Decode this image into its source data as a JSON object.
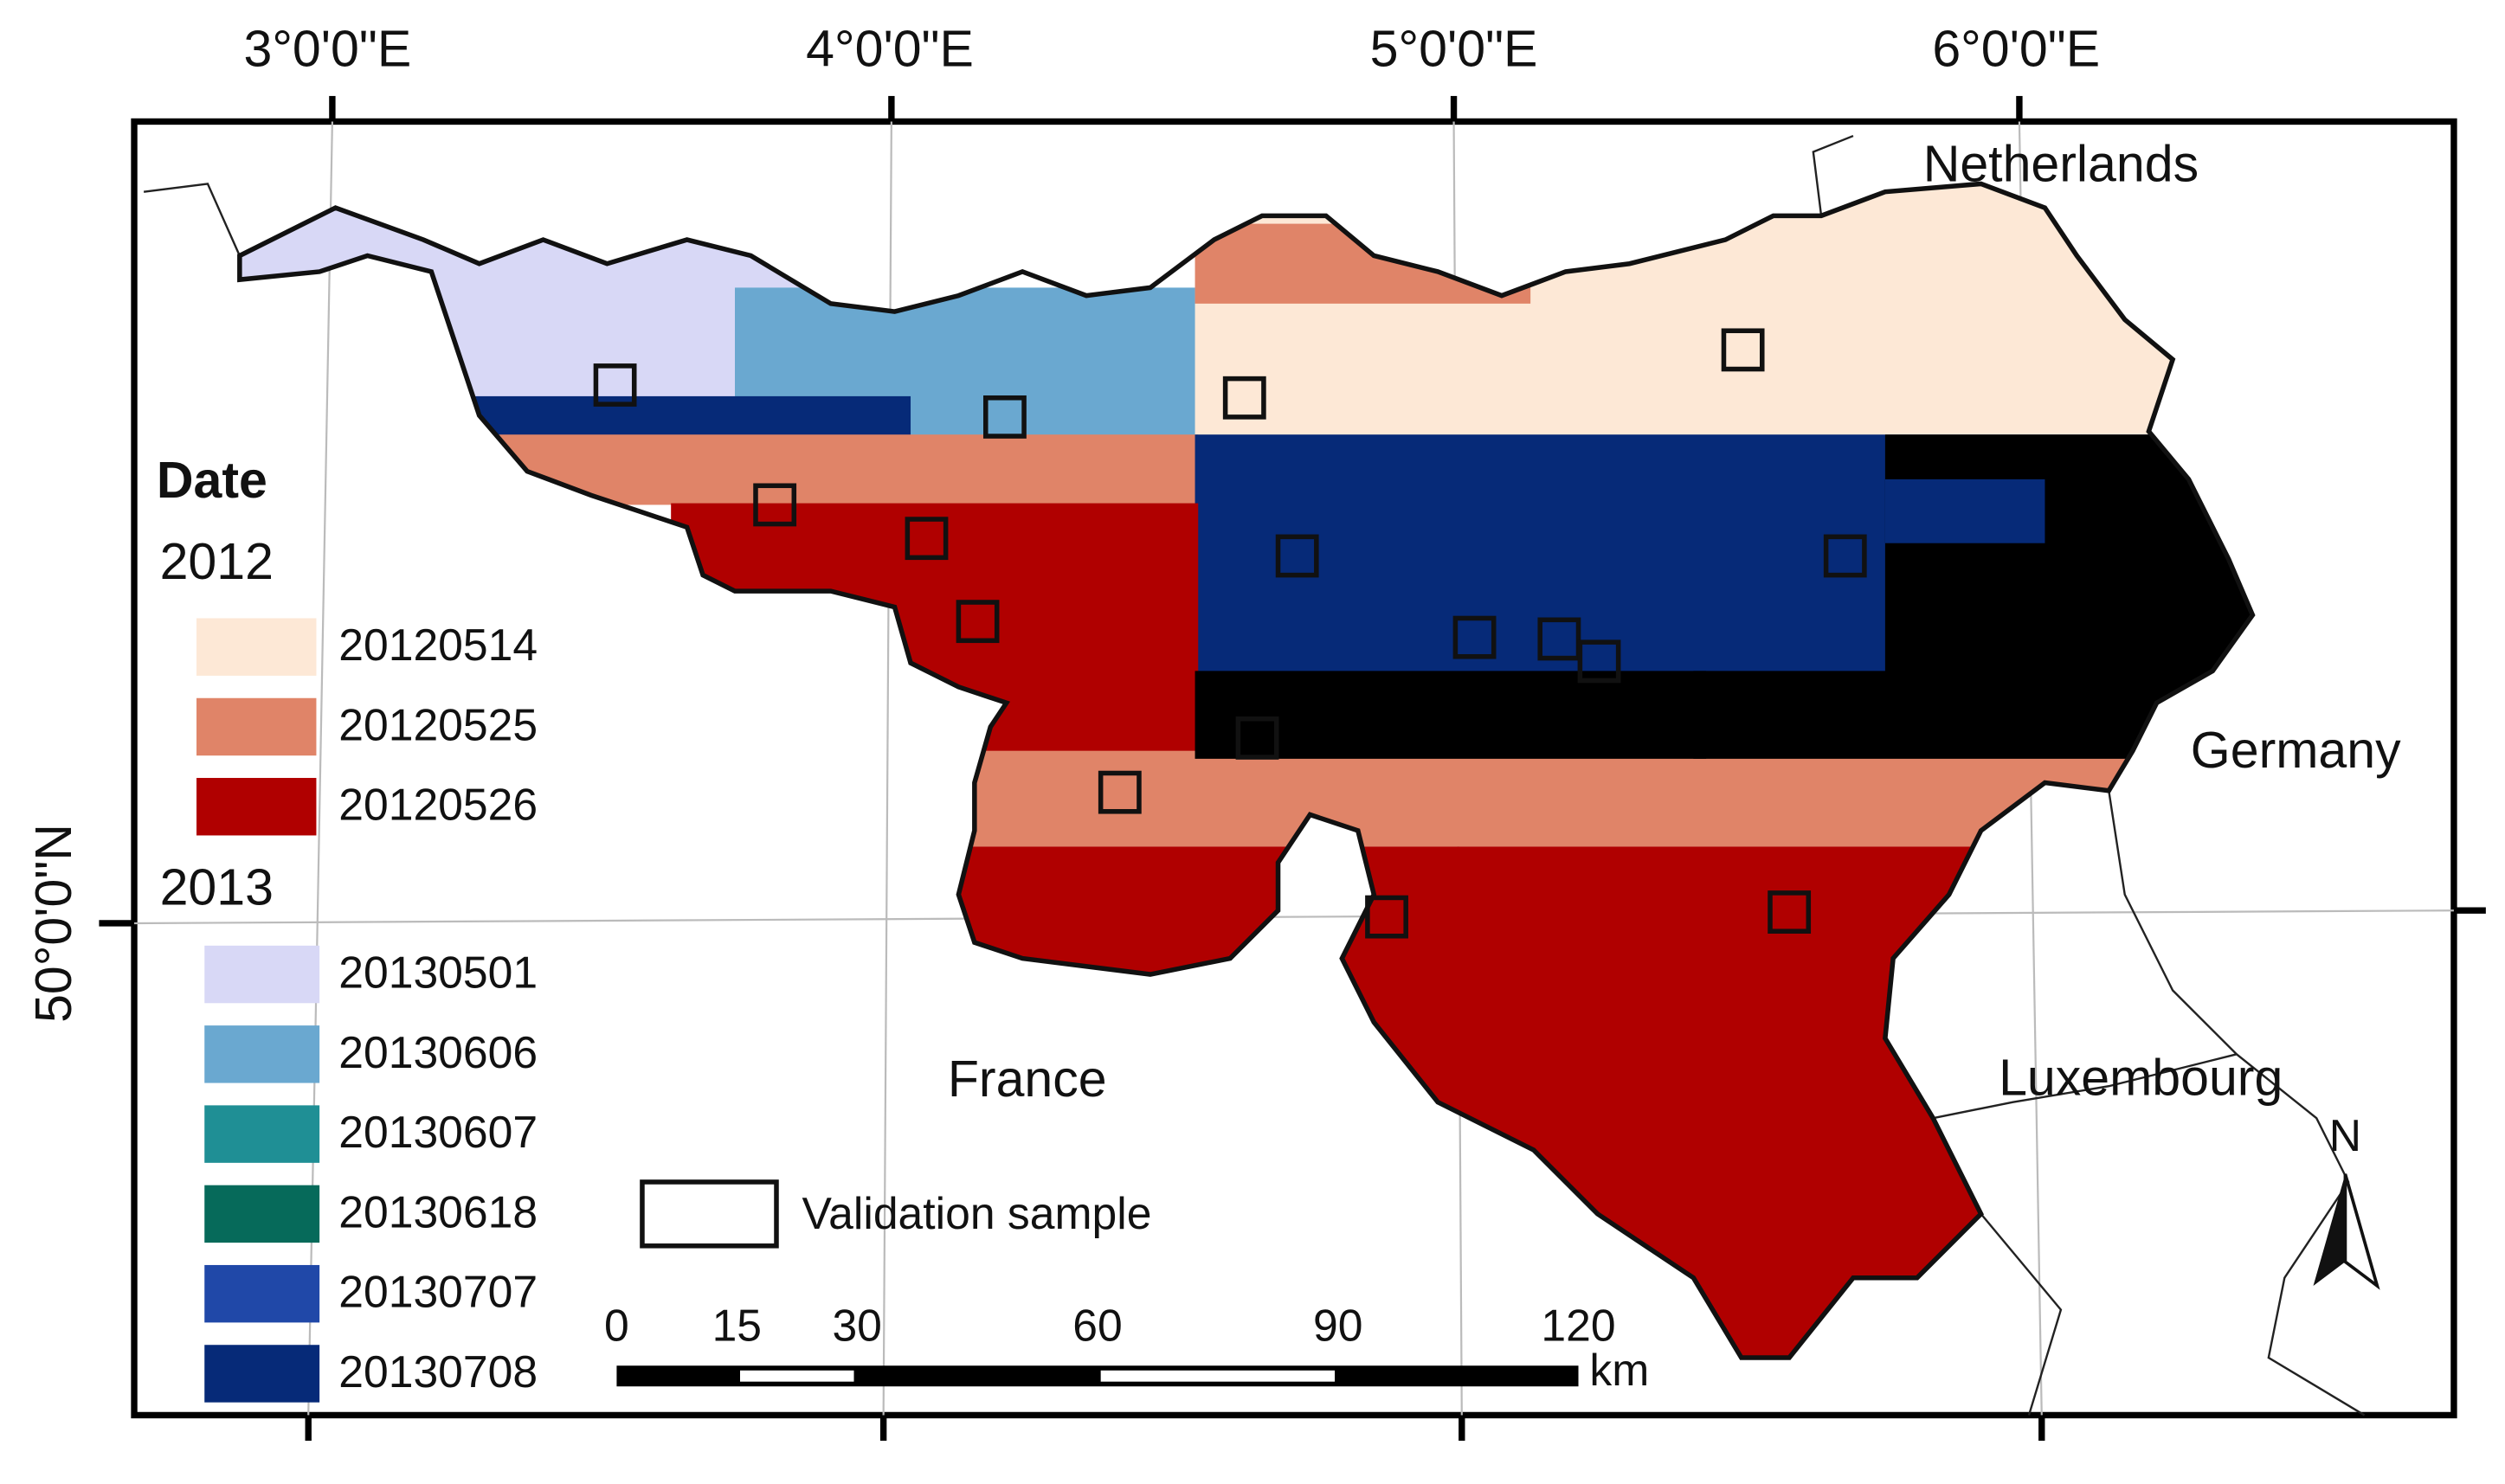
{
  "graticule": {
    "top": [
      "3°0'0\"E",
      "4°0'0\"E",
      "5°0'0\"E",
      "6°0'0\"E"
    ],
    "left": [
      "50°0'0\"N"
    ]
  },
  "countries": {
    "netherlands": "Netherlands",
    "germany": "Germany",
    "france": "France",
    "luxembourg": "Luxembourg"
  },
  "legend": {
    "title": "Date",
    "groups": [
      {
        "year": "2012",
        "entries": [
          {
            "label": "20120514",
            "color": "#fde8d6"
          },
          {
            "label": "20120525",
            "color": "#e08468"
          },
          {
            "label": "20120526",
            "color": "#b00000"
          }
        ]
      },
      {
        "year": "2013",
        "entries": [
          {
            "label": "20130501",
            "color": "#d8d8f6"
          },
          {
            "label": "20130606",
            "color": "#6aa8d0"
          },
          {
            "label": "20130607",
            "color": "#1f8f95"
          },
          {
            "label": "20130618",
            "color": "#066a5a"
          },
          {
            "label": "20130707",
            "color": "#2048a8"
          },
          {
            "label": "20130708",
            "color": "#062a78"
          }
        ]
      }
    ],
    "sample": "Validation sample"
  },
  "scale_bar": {
    "ticks": [
      0,
      15,
      30,
      60,
      90,
      120
    ],
    "unit": "km"
  },
  "north": "N"
}
